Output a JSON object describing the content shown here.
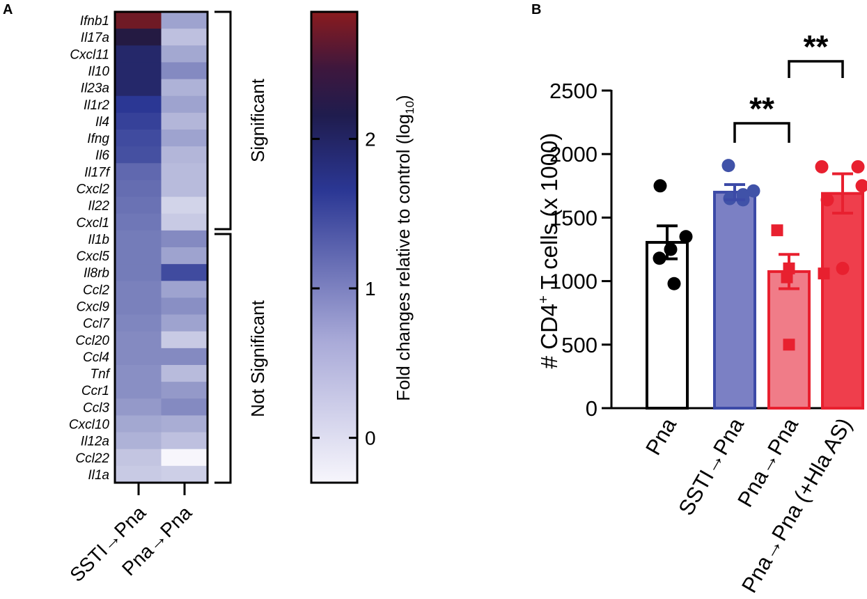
{
  "panels": {
    "a": "A",
    "b": "B"
  },
  "chart_data": [
    {
      "type": "heatmap",
      "panel": "A",
      "columns": [
        "SSTI→Pna",
        "Pna→Pna"
      ],
      "rows": [
        "Ifnb1",
        "Il17a",
        "Cxcl11",
        "Il10",
        "Il23a",
        "Il1r2",
        "Il4",
        "Ifng",
        "Il6",
        "Il17f",
        "Cxcl2",
        "Il22",
        "Cxcl1",
        "Il1b",
        "Cxcl5",
        "Il8rb",
        "Ccl2",
        "Cxcl9",
        "Ccl7",
        "Ccl20",
        "Ccl4",
        "Tnf",
        "Ccr1",
        "Ccl3",
        "Cxcl10",
        "Il12a",
        "Ccl22",
        "Il1a"
      ],
      "values": [
        [
          2.75,
          0.55
        ],
        [
          2.25,
          0.25
        ],
        [
          1.95,
          0.5
        ],
        [
          1.95,
          0.8
        ],
        [
          1.95,
          0.4
        ],
        [
          1.65,
          0.55
        ],
        [
          1.55,
          0.35
        ],
        [
          1.45,
          0.55
        ],
        [
          1.4,
          0.35
        ],
        [
          1.15,
          0.3
        ],
        [
          1.1,
          0.3
        ],
        [
          1.05,
          0.05
        ],
        [
          1.0,
          0.15
        ],
        [
          0.95,
          0.8
        ],
        [
          0.95,
          0.55
        ],
        [
          0.95,
          1.45
        ],
        [
          0.9,
          0.55
        ],
        [
          0.9,
          0.75
        ],
        [
          0.85,
          0.55
        ],
        [
          0.8,
          0.15
        ],
        [
          0.8,
          0.8
        ],
        [
          0.75,
          0.3
        ],
        [
          0.75,
          0.65
        ],
        [
          0.65,
          0.8
        ],
        [
          0.5,
          0.45
        ],
        [
          0.4,
          0.25
        ],
        [
          0.2,
          -0.3
        ],
        [
          0.15,
          0.1
        ]
      ],
      "groups": [
        {
          "label": "Significant",
          "from": "Ifnb1",
          "to": "Cxcl1"
        },
        {
          "label": "Not Significant",
          "from": "Il1b",
          "to": "Il1a"
        }
      ],
      "colorbar": {
        "label": "Fold changes relative to control (log",
        "label_sub": "10",
        "label_close": ")",
        "range": [
          -0.3,
          2.85
        ],
        "ticks": [
          "0",
          "1",
          "2"
        ],
        "colors": {
          "low": "#f7f6fc",
          "mid": "#2b3794",
          "dark": "#201a44",
          "high": "#7e1a1f"
        }
      }
    },
    {
      "type": "bar",
      "panel": "B",
      "ylabel": "# CD4",
      "ylabel_sup": "+",
      "ylabel_rest": " T cells (x 1000)",
      "ylim": [
        0,
        2500
      ],
      "yticks": [
        "0",
        "500",
        "1000",
        "1500",
        "2000",
        "2500"
      ],
      "categories": [
        "Pna",
        "SSTI→Pna",
        "Pna→Pna",
        "Pna→Pna (+Hla AS)"
      ],
      "means": [
        1305,
        1700,
        1075,
        1690
      ],
      "sem": [
        130,
        60,
        135,
        155
      ],
      "bar_colors": [
        "#ffffff",
        "#7b80c4",
        "#f07c88",
        "#ef3e4c"
      ],
      "edge_colors": [
        "#000000",
        "#3c4aa7",
        "#e8202f",
        "#e8202f"
      ],
      "marker_colors": [
        "#000000",
        "#4052a8",
        "#e8202f",
        "#e8202f"
      ],
      "markers": [
        "circle",
        "circle",
        "square",
        "circle"
      ],
      "points": [
        [
          1750,
          1350,
          1250,
          1180,
          980
        ],
        [
          1910,
          1710,
          1680,
          1650,
          1640
        ],
        [
          1400,
          1100,
          1060,
          1030,
          500
        ],
        [
          1900,
          1900,
          1750,
          1640,
          1100
        ]
      ],
      "significance": [
        {
          "between": [
            1,
            2
          ],
          "label": "**"
        },
        {
          "between": [
            2,
            3
          ],
          "label": "**"
        }
      ]
    }
  ]
}
